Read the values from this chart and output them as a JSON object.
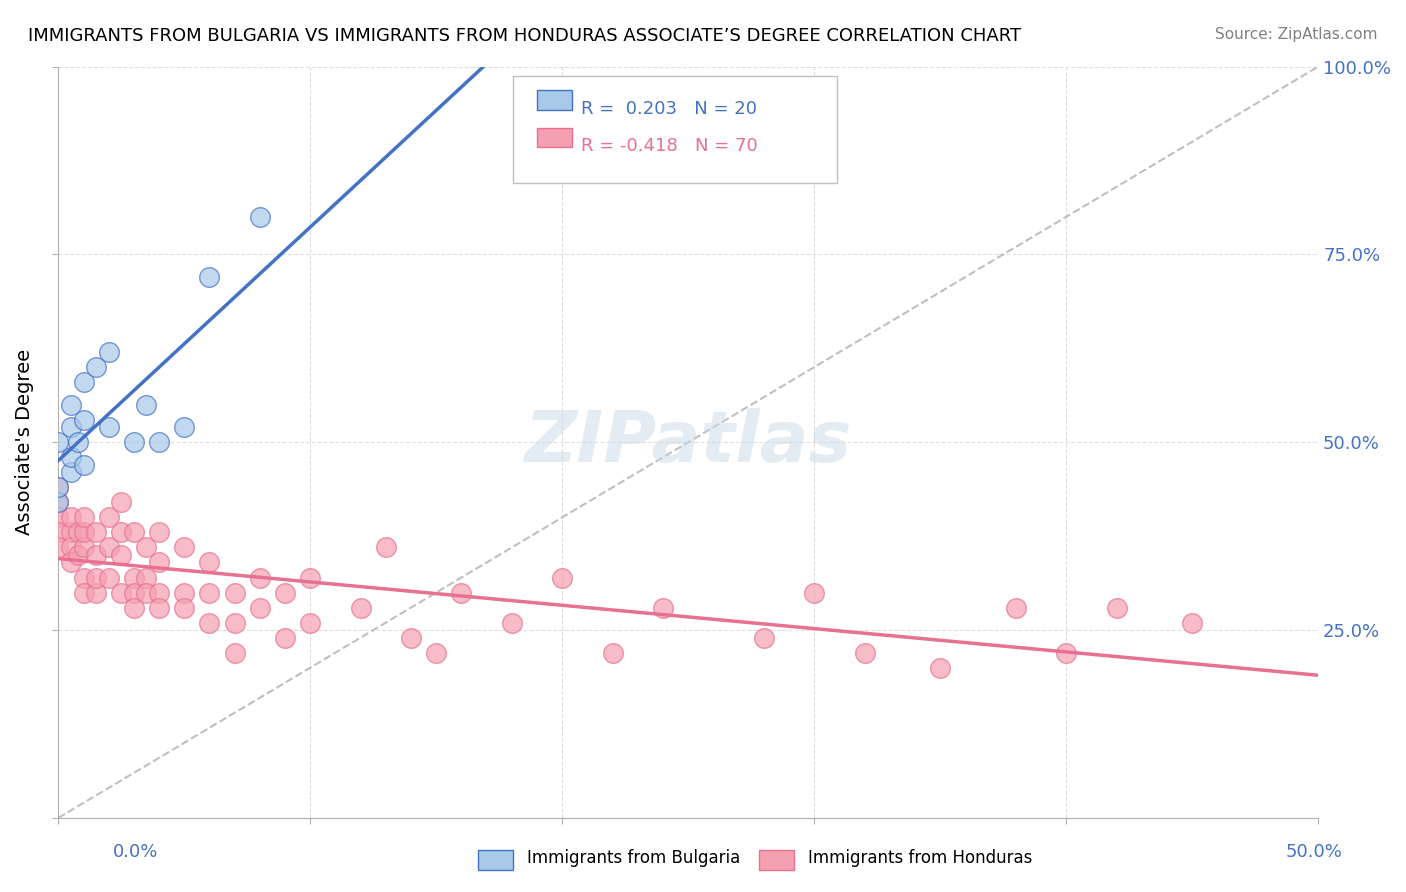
{
  "title": "IMMIGRANTS FROM BULGARIA VS IMMIGRANTS FROM HONDURAS ASSOCIATE’S DEGREE CORRELATION CHART",
  "source": "Source: ZipAtlas.com",
  "ylabel": "Associate's Degree",
  "xlim": [
    0,
    0.5
  ],
  "ylim": [
    0,
    1.0
  ],
  "bulgaria_color": "#a8c8e8",
  "honduras_color": "#f4a0b0",
  "bulgaria_line_color": "#4472c4",
  "honduras_line_color": "#e87090",
  "diagonal_color": "#b0b0b0",
  "background_color": "#ffffff",
  "bulgaria_x": [
    0.0,
    0.0,
    0.0,
    0.005,
    0.005,
    0.005,
    0.005,
    0.008,
    0.01,
    0.01,
    0.01,
    0.015,
    0.02,
    0.02,
    0.03,
    0.035,
    0.04,
    0.05,
    0.06,
    0.08
  ],
  "bulgaria_y": [
    0.42,
    0.44,
    0.5,
    0.46,
    0.48,
    0.52,
    0.55,
    0.5,
    0.47,
    0.53,
    0.58,
    0.6,
    0.52,
    0.62,
    0.5,
    0.55,
    0.5,
    0.52,
    0.72,
    0.8
  ],
  "honduras_x": [
    0.0,
    0.0,
    0.0,
    0.0,
    0.0,
    0.005,
    0.005,
    0.005,
    0.005,
    0.008,
    0.008,
    0.01,
    0.01,
    0.01,
    0.01,
    0.01,
    0.015,
    0.015,
    0.015,
    0.015,
    0.02,
    0.02,
    0.02,
    0.025,
    0.025,
    0.025,
    0.025,
    0.03,
    0.03,
    0.03,
    0.03,
    0.035,
    0.035,
    0.035,
    0.04,
    0.04,
    0.04,
    0.04,
    0.05,
    0.05,
    0.05,
    0.06,
    0.06,
    0.06,
    0.07,
    0.07,
    0.07,
    0.08,
    0.08,
    0.09,
    0.09,
    0.1,
    0.1,
    0.12,
    0.13,
    0.14,
    0.15,
    0.16,
    0.18,
    0.2,
    0.22,
    0.24,
    0.28,
    0.3,
    0.32,
    0.35,
    0.38,
    0.4,
    0.42,
    0.45
  ],
  "honduras_y": [
    0.42,
    0.44,
    0.4,
    0.38,
    0.36,
    0.38,
    0.4,
    0.36,
    0.34,
    0.38,
    0.35,
    0.36,
    0.38,
    0.4,
    0.32,
    0.3,
    0.38,
    0.35,
    0.3,
    0.32,
    0.36,
    0.4,
    0.32,
    0.38,
    0.35,
    0.3,
    0.42,
    0.38,
    0.32,
    0.3,
    0.28,
    0.36,
    0.32,
    0.3,
    0.38,
    0.34,
    0.3,
    0.28,
    0.36,
    0.3,
    0.28,
    0.34,
    0.3,
    0.26,
    0.3,
    0.26,
    0.22,
    0.32,
    0.28,
    0.3,
    0.24,
    0.32,
    0.26,
    0.28,
    0.36,
    0.24,
    0.22,
    0.3,
    0.26,
    0.32,
    0.22,
    0.28,
    0.24,
    0.3,
    0.22,
    0.2,
    0.28,
    0.22,
    0.28,
    0.26
  ]
}
